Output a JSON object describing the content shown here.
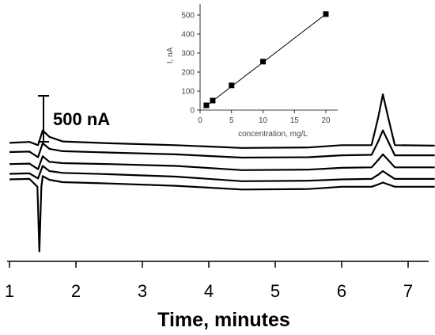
{
  "chart_data": [
    {
      "type": "line",
      "id": "chromatograms",
      "xlabel": "Time, minutes",
      "ylabel": "",
      "xlim": [
        1,
        7.4
      ],
      "x_ticks": [
        1,
        2,
        3,
        4,
        5,
        6,
        7
      ],
      "x_tick_labels": [
        "1",
        "2",
        "3",
        "4",
        "5",
        "6",
        "7"
      ],
      "y_unit": "nA",
      "scale_bar": {
        "label": "500 nA",
        "value": 500
      },
      "grid": false,
      "series": [
        {
          "points": [
            [
              1.0,
              1625
            ],
            [
              1.3,
              1635
            ],
            [
              1.43,
              1600
            ],
            [
              1.5,
              1760
            ],
            [
              1.6,
              1690
            ],
            [
              1.8,
              1640
            ],
            [
              2.5,
              1620
            ],
            [
              3.5,
              1600
            ],
            [
              4.5,
              1570
            ],
            [
              5.5,
              1575
            ],
            [
              6.0,
              1600
            ],
            [
              6.45,
              1600
            ],
            [
              6.55,
              1900
            ],
            [
              6.62,
              2150
            ],
            [
              6.7,
              1900
            ],
            [
              6.8,
              1600
            ],
            [
              7.4,
              1595
            ]
          ]
        },
        {
          "points": [
            [
              1.0,
              1525
            ],
            [
              1.3,
              1530
            ],
            [
              1.43,
              1470
            ],
            [
              1.5,
              1620
            ],
            [
              1.6,
              1560
            ],
            [
              1.8,
              1535
            ],
            [
              2.5,
              1520
            ],
            [
              3.5,
              1500
            ],
            [
              4.5,
              1465
            ],
            [
              5.5,
              1470
            ],
            [
              6.0,
              1490
            ],
            [
              6.45,
              1495
            ],
            [
              6.55,
              1640
            ],
            [
              6.62,
              1760
            ],
            [
              6.7,
              1640
            ],
            [
              6.8,
              1490
            ],
            [
              7.4,
              1490
            ]
          ]
        },
        {
          "points": [
            [
              1.0,
              1395
            ],
            [
              1.3,
              1400
            ],
            [
              1.43,
              1340
            ],
            [
              1.5,
              1480
            ],
            [
              1.6,
              1420
            ],
            [
              1.8,
              1405
            ],
            [
              2.5,
              1395
            ],
            [
              3.5,
              1375
            ],
            [
              4.5,
              1330
            ],
            [
              5.5,
              1335
            ],
            [
              6.0,
              1355
            ],
            [
              6.45,
              1360
            ],
            [
              6.55,
              1440
            ],
            [
              6.62,
              1500
            ],
            [
              6.7,
              1440
            ],
            [
              6.8,
              1360
            ],
            [
              7.4,
              1360
            ]
          ]
        },
        {
          "points": [
            [
              1.0,
              1290
            ],
            [
              1.3,
              1295
            ],
            [
              1.43,
              1240
            ],
            [
              1.5,
              1375
            ],
            [
              1.6,
              1320
            ],
            [
              1.8,
              1300
            ],
            [
              2.5,
              1285
            ],
            [
              3.5,
              1260
            ],
            [
              4.5,
              1210
            ],
            [
              5.5,
              1215
            ],
            [
              6.0,
              1230
            ],
            [
              6.45,
              1235
            ],
            [
              6.55,
              1280
            ],
            [
              6.62,
              1320
            ],
            [
              6.7,
              1280
            ],
            [
              6.8,
              1235
            ],
            [
              7.4,
              1235
            ]
          ]
        },
        {
          "points": [
            [
              1.0,
              1230
            ],
            [
              1.3,
              1235
            ],
            [
              1.42,
              1150
            ],
            [
              1.45,
              450
            ],
            [
              1.48,
              1150
            ],
            [
              1.5,
              1265
            ],
            [
              1.6,
              1225
            ],
            [
              1.8,
              1200
            ],
            [
              2.5,
              1185
            ],
            [
              3.5,
              1160
            ],
            [
              4.5,
              1120
            ],
            [
              5.5,
              1125
            ],
            [
              6.0,
              1150
            ],
            [
              6.45,
              1150
            ],
            [
              6.55,
              1175
            ],
            [
              6.62,
              1195
            ],
            [
              6.7,
              1175
            ],
            [
              6.8,
              1150
            ],
            [
              7.4,
              1150
            ]
          ]
        }
      ]
    },
    {
      "type": "scatter",
      "id": "calibration-inset",
      "xlabel": "concentration, mg/L",
      "ylabel": "I, nA",
      "xlim": [
        0,
        22
      ],
      "ylim": [
        0,
        520
      ],
      "x_ticks": [
        0,
        5,
        10,
        15,
        20
      ],
      "y_ticks": [
        0,
        100,
        200,
        300,
        400,
        500
      ],
      "x": [
        1,
        2,
        5,
        10,
        20
      ],
      "y": [
        25,
        50,
        130,
        255,
        505
      ],
      "fit_line": {
        "x": [
          0.5,
          20
        ],
        "y": [
          10,
          505
        ]
      },
      "grid": false
    }
  ]
}
